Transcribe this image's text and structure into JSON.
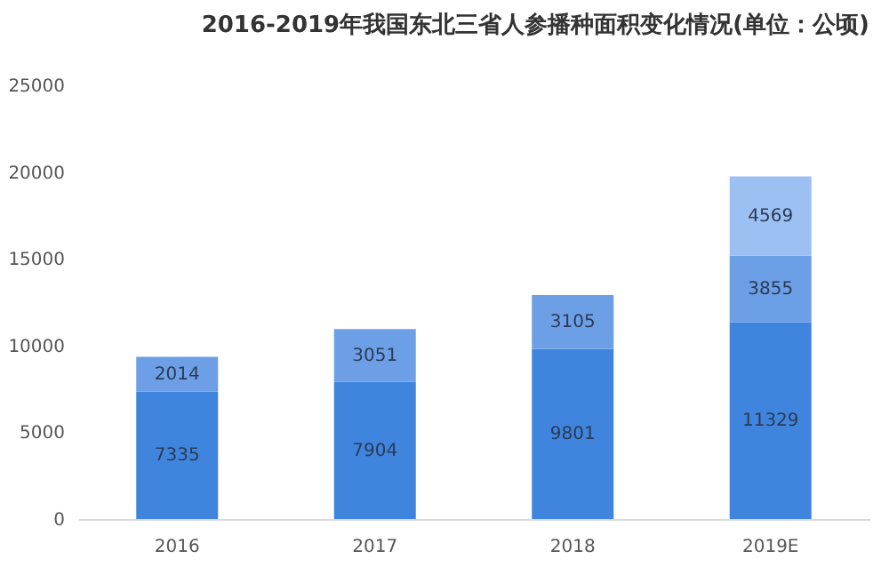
{
  "chart_data": {
    "type": "bar",
    "title": "2016-2019年我国东北三省人参播种面积变化情况(单位：公顷)",
    "categories": [
      "2016",
      "2017",
      "2018",
      "2019E"
    ],
    "stacked": true,
    "data_labels": true,
    "series": [
      {
        "color": "#3f85dd",
        "values": [
          7335,
          7904,
          9801,
          11329
        ]
      },
      {
        "color": "#6c9fe6",
        "values": [
          2014,
          3051,
          3105,
          3855
        ]
      },
      {
        "color": "#9cc0f1",
        "values": [
          null,
          null,
          null,
          4569
        ]
      }
    ],
    "ylim": [
      0,
      25000
    ],
    "yticks": [
      0,
      5000,
      10000,
      15000,
      20000,
      25000
    ],
    "grid": false,
    "legend": false
  }
}
